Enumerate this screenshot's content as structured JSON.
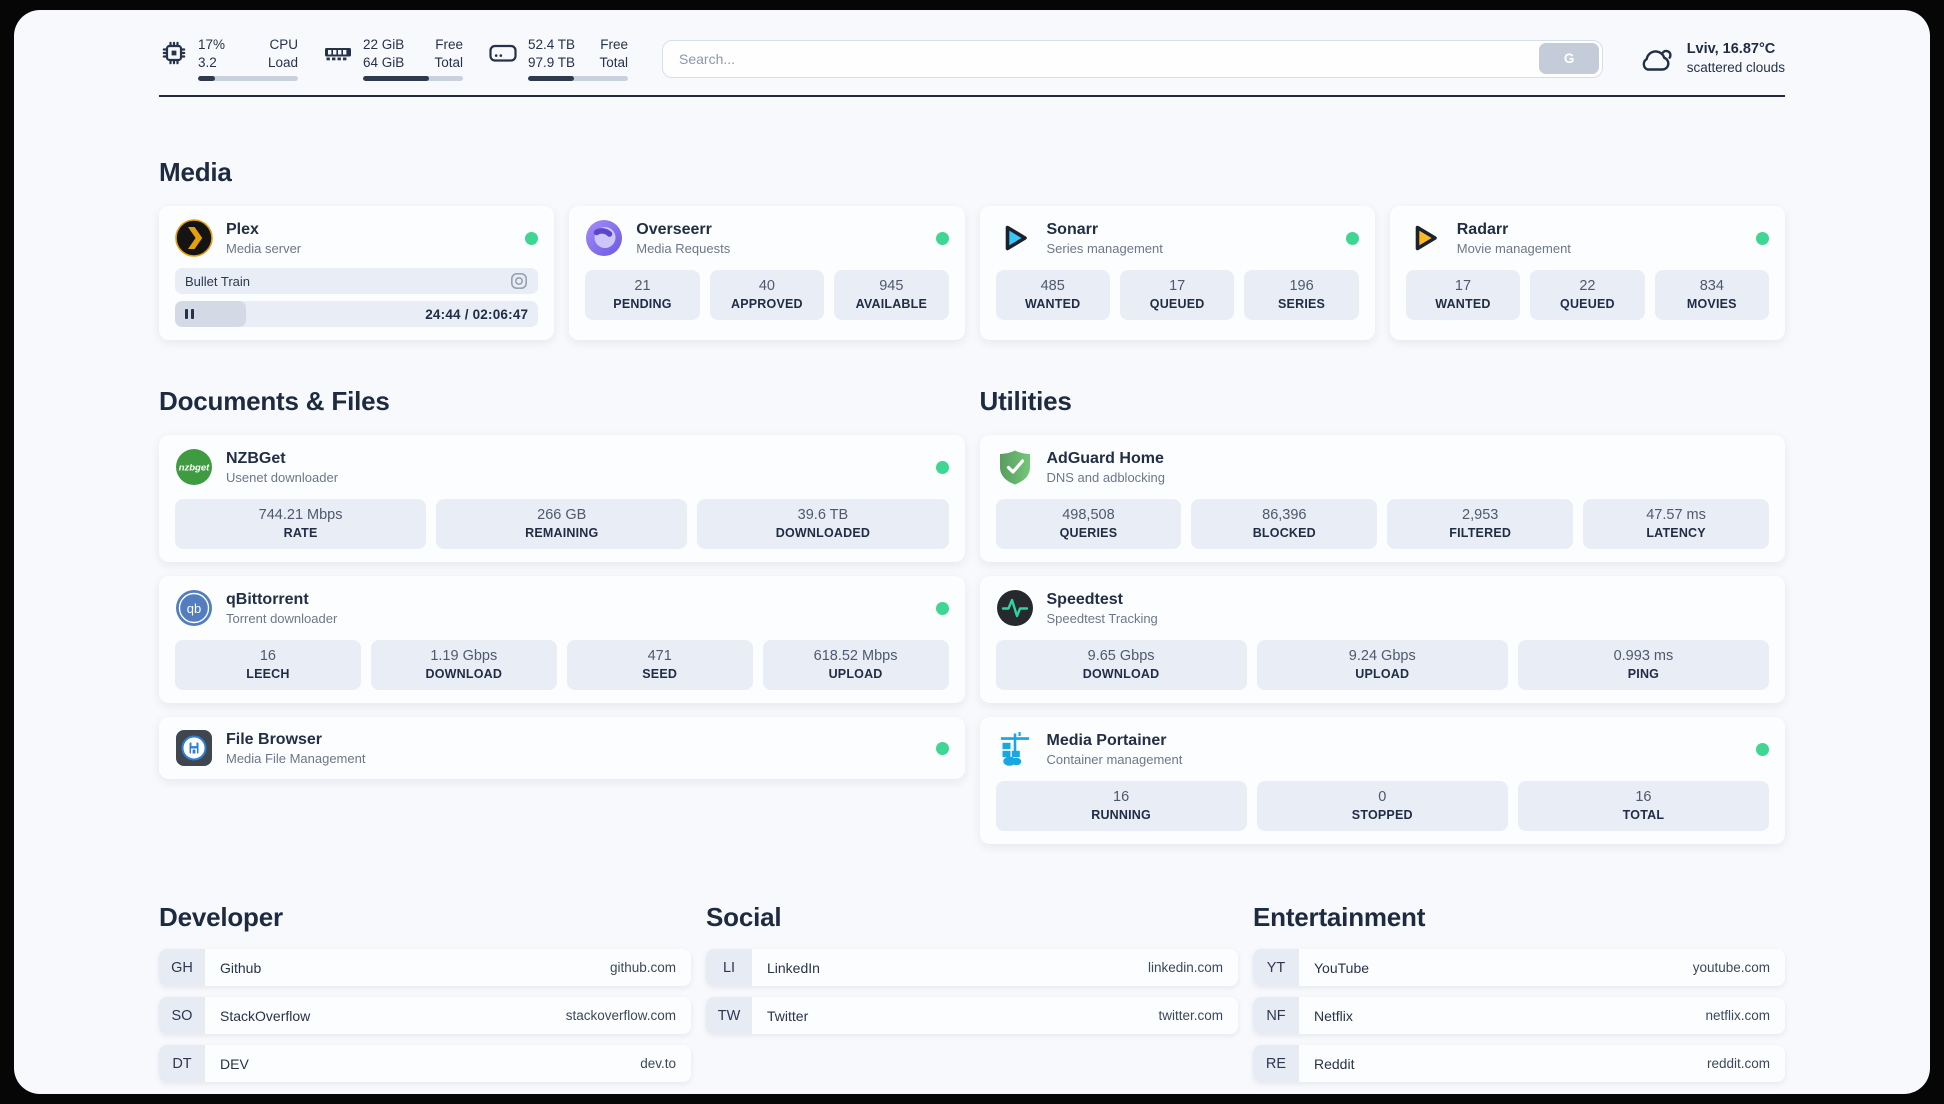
{
  "topbar": {
    "system": [
      {
        "icon": "cpu-icon",
        "rows": [
          {
            "value": "17%",
            "label": "CPU"
          },
          {
            "value": "3.2",
            "label": "Load"
          }
        ],
        "progress_pct": 17
      },
      {
        "icon": "ram-icon",
        "rows": [
          {
            "value": "22 GiB",
            "label": "Free"
          },
          {
            "value": "64 GiB",
            "label": "Total"
          }
        ],
        "progress_pct": 66
      },
      {
        "icon": "disk-icon",
        "rows": [
          {
            "value": "52.4 TB",
            "label": "Free"
          },
          {
            "value": "97.9 TB",
            "label": "Total"
          }
        ],
        "progress_pct": 46
      }
    ],
    "search": {
      "placeholder": "Search...",
      "button_label": "G"
    },
    "weather": {
      "icon": "cloud-icon",
      "location_temperature": "Lviv, 16.87°C",
      "condition": "scattered clouds"
    }
  },
  "colors": {
    "status_online_green": "#3fd592",
    "progress_fill_dark": "#2e3a4e",
    "stat_box_bg": "#e9eef6"
  },
  "sections": {
    "media": {
      "title": "Media",
      "cards": [
        {
          "icon": "plex-icon",
          "name": "Plex",
          "subtitle": "Media server",
          "online": true,
          "player": {
            "title": "Bullet Train",
            "media_type_icon": "video-icon",
            "pause_icon": "pause-icon",
            "progress_pct": 19.5,
            "time": "24:44 / 02:06:47"
          }
        },
        {
          "icon": "overseerr-icon",
          "name": "Overseerr",
          "subtitle": "Media Requests",
          "online": true,
          "stats": [
            {
              "value": "21",
              "label": "PENDING"
            },
            {
              "value": "40",
              "label": "APPROVED"
            },
            {
              "value": "945",
              "label": "AVAILABLE"
            }
          ]
        },
        {
          "icon": "sonarr-icon",
          "name": "Sonarr",
          "subtitle": "Series management",
          "online": true,
          "stats": [
            {
              "value": "485",
              "label": "WANTED"
            },
            {
              "value": "17",
              "label": "QUEUED"
            },
            {
              "value": "196",
              "label": "SERIES"
            }
          ]
        },
        {
          "icon": "radarr-icon",
          "name": "Radarr",
          "subtitle": "Movie management",
          "online": true,
          "stats": [
            {
              "value": "17",
              "label": "WANTED"
            },
            {
              "value": "22",
              "label": "QUEUED"
            },
            {
              "value": "834",
              "label": "MOVIES"
            }
          ]
        }
      ]
    },
    "documents": {
      "title": "Documents & Files",
      "cards": [
        {
          "icon": "nzbget-icon",
          "name": "NZBGet",
          "subtitle": "Usenet downloader",
          "online": true,
          "stats": [
            {
              "value": "744.21 Mbps",
              "label": "RATE"
            },
            {
              "value": "266 GB",
              "label": "REMAINING"
            },
            {
              "value": "39.6 TB",
              "label": "DOWNLOADED"
            }
          ]
        },
        {
          "icon": "qbittorrent-icon",
          "name": "qBittorrent",
          "subtitle": "Torrent downloader",
          "online": true,
          "stats": [
            {
              "value": "16",
              "label": "LEECH"
            },
            {
              "value": "1.19 Gbps",
              "label": "DOWNLOAD"
            },
            {
              "value": "471",
              "label": "SEED"
            },
            {
              "value": "618.52 Mbps",
              "label": "UPLOAD"
            }
          ]
        },
        {
          "icon": "filebrowser-icon",
          "name": "File Browser",
          "subtitle": "Media File Management",
          "online": true
        }
      ]
    },
    "utilities": {
      "title": "Utilities",
      "cards": [
        {
          "icon": "adguard-icon",
          "name": "AdGuard Home",
          "subtitle": "DNS and adblocking",
          "online": false,
          "stats": [
            {
              "value": "498,508",
              "label": "QUERIES"
            },
            {
              "value": "86,396",
              "label": "BLOCKED"
            },
            {
              "value": "2,953",
              "label": "FILTERED"
            },
            {
              "value": "47.57 ms",
              "label": "LATENCY"
            }
          ]
        },
        {
          "icon": "speedtest-icon",
          "name": "Speedtest",
          "subtitle": "Speedtest Tracking",
          "online": false,
          "stats": [
            {
              "value": "9.65 Gbps",
              "label": "DOWNLOAD"
            },
            {
              "value": "9.24 Gbps",
              "label": "UPLOAD"
            },
            {
              "value": "0.993 ms",
              "label": "PING"
            }
          ]
        },
        {
          "icon": "portainer-icon",
          "name": "Media Portainer",
          "subtitle": "Container management",
          "online": true,
          "stats": [
            {
              "value": "16",
              "label": "RUNNING"
            },
            {
              "value": "0",
              "label": "STOPPED"
            },
            {
              "value": "16",
              "label": "TOTAL"
            }
          ]
        }
      ]
    }
  },
  "bookmarks": [
    {
      "title": "Developer",
      "items": [
        {
          "abbr": "GH",
          "name": "Github",
          "url": "github.com"
        },
        {
          "abbr": "SO",
          "name": "StackOverflow",
          "url": "stackoverflow.com"
        },
        {
          "abbr": "DT",
          "name": "DEV",
          "url": "dev.to"
        }
      ]
    },
    {
      "title": "Social",
      "items": [
        {
          "abbr": "LI",
          "name": "LinkedIn",
          "url": "linkedin.com"
        },
        {
          "abbr": "TW",
          "name": "Twitter",
          "url": "twitter.com"
        }
      ]
    },
    {
      "title": "Entertainment",
      "items": [
        {
          "abbr": "YT",
          "name": "YouTube",
          "url": "youtube.com"
        },
        {
          "abbr": "NF",
          "name": "Netflix",
          "url": "netflix.com"
        },
        {
          "abbr": "RE",
          "name": "Reddit",
          "url": "reddit.com"
        }
      ]
    }
  ]
}
